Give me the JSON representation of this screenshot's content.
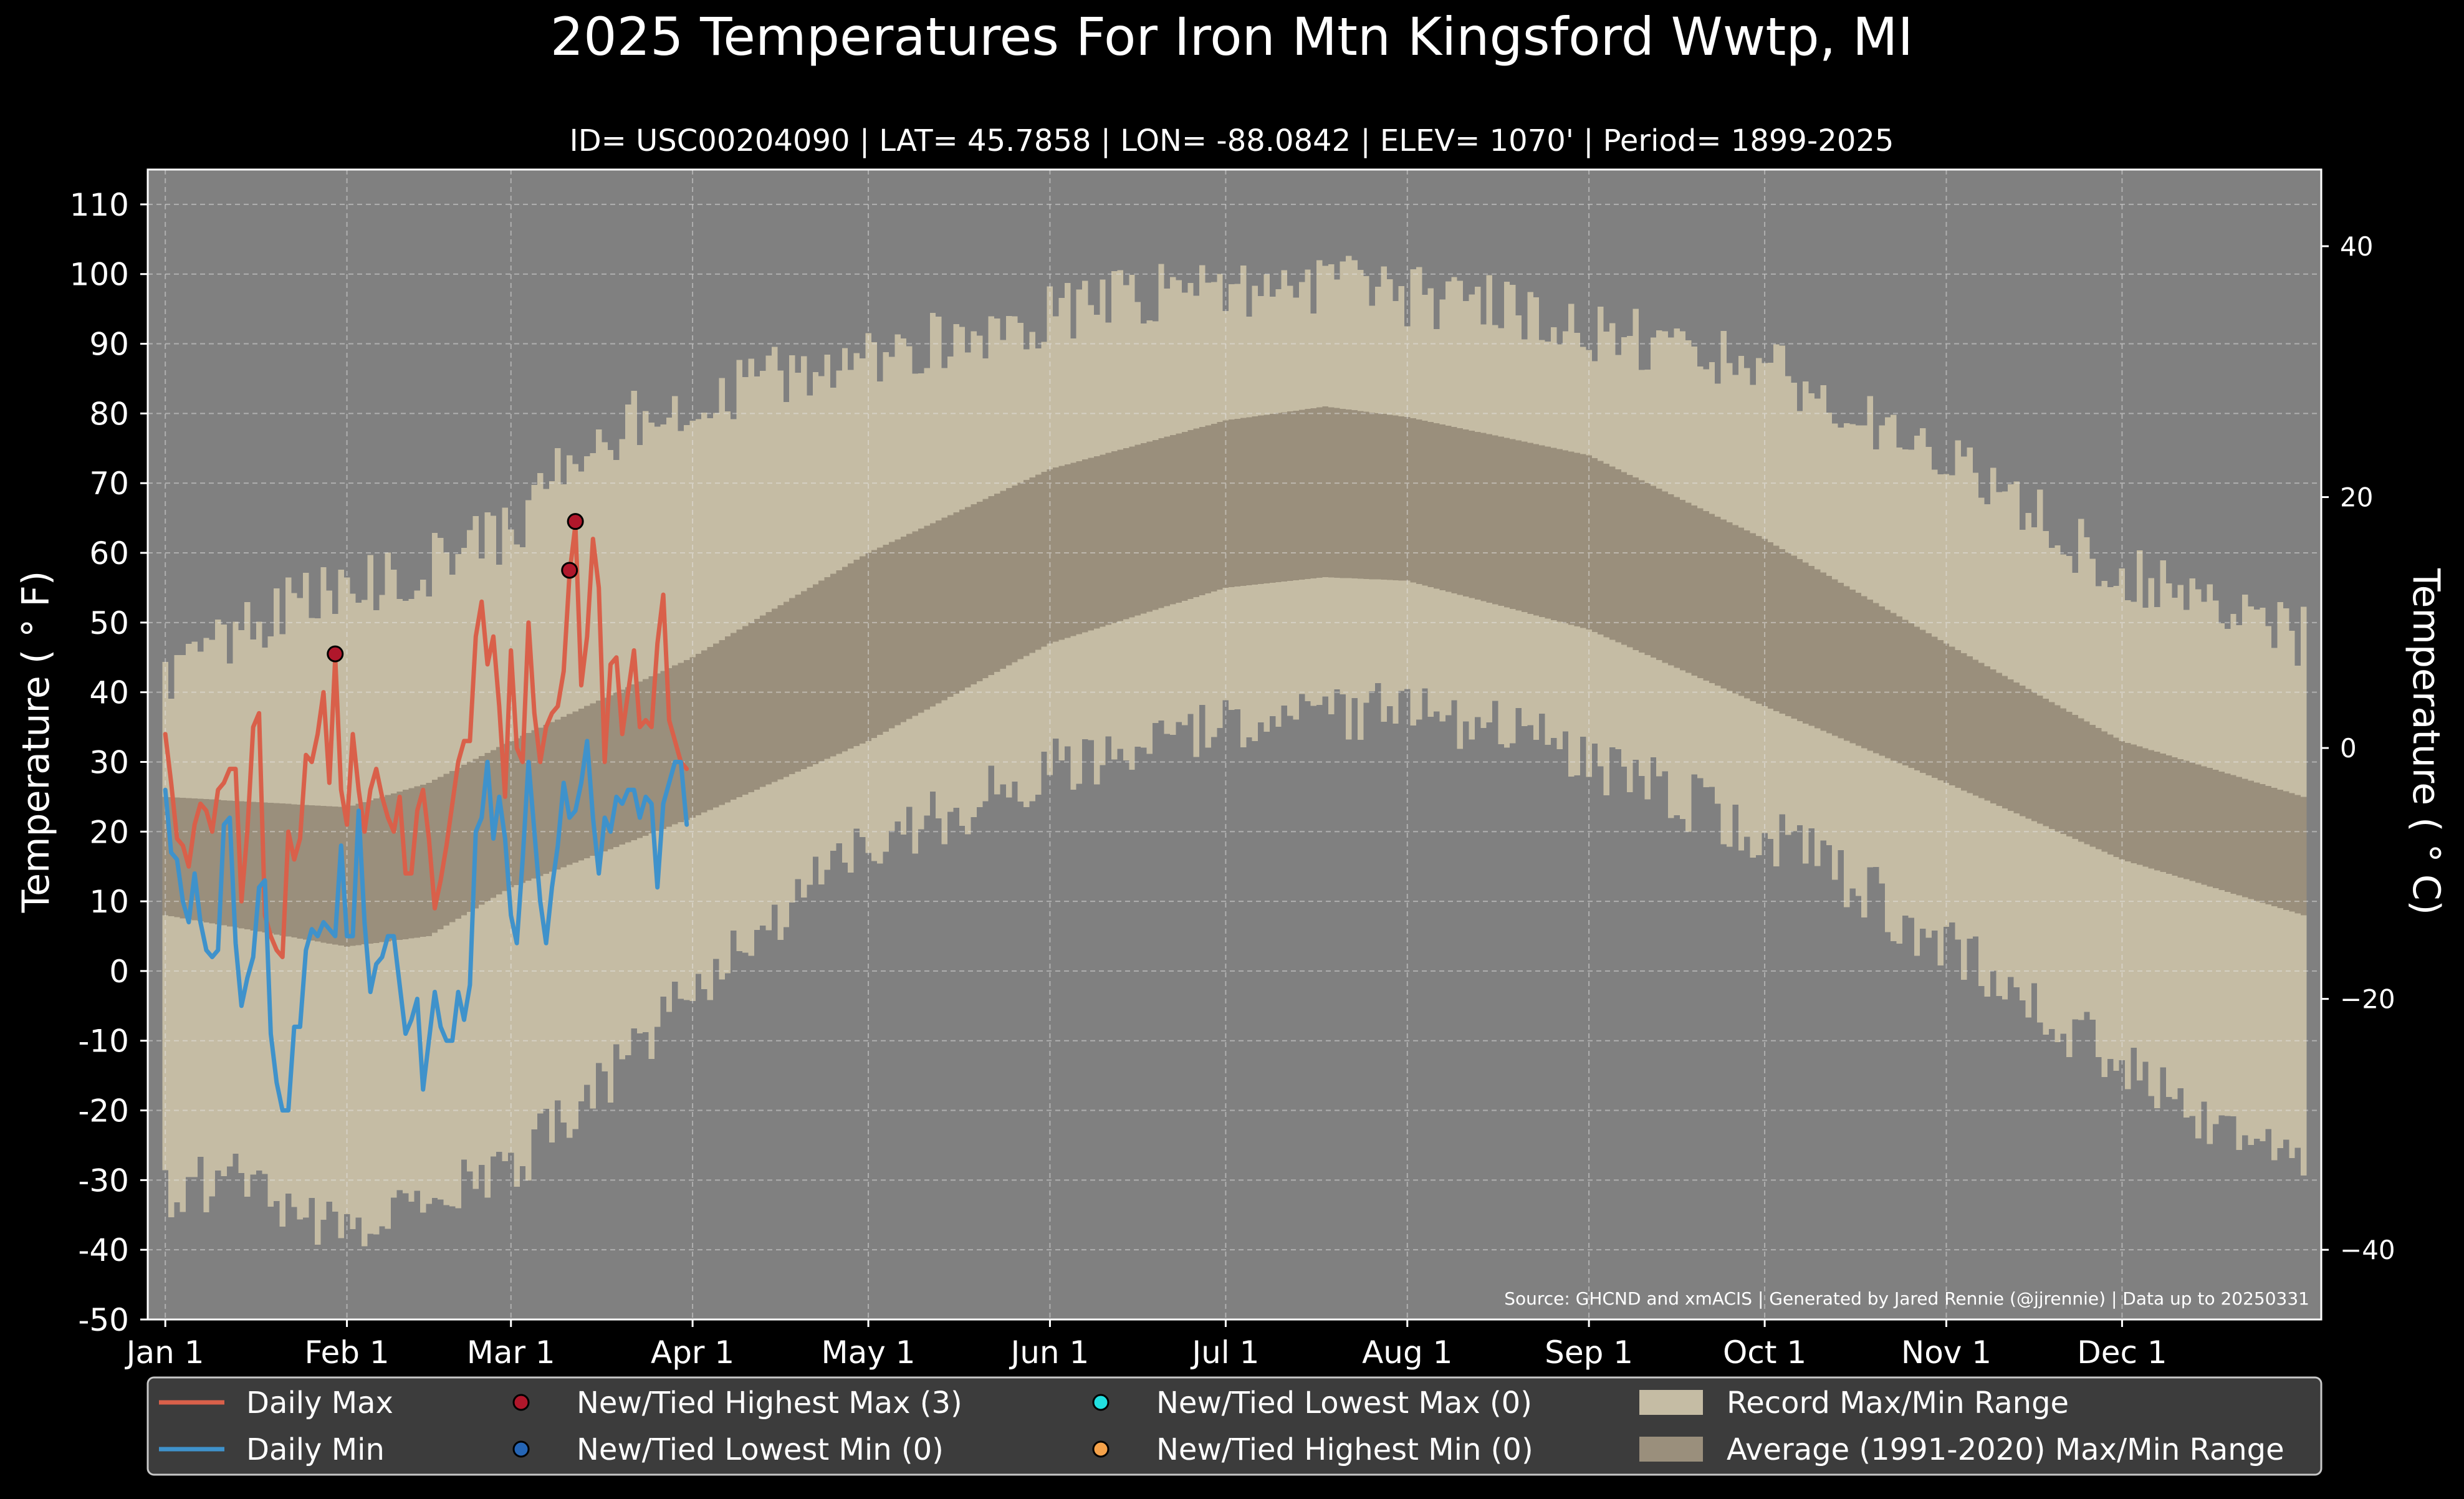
{
  "chart_data": {
    "type": "line",
    "title": "2025 Temperatures For Iron Mtn Kingsford Wwtp, MI",
    "subtitle": "ID= USC00204090 | LAT= 45.7858 | LON= -88.0842 | ELEV= 1070' | Period= 1899-2025",
    "ylabel": "Temperature ($^\\circ$F)",
    "ylabel_display": "Temperature ( ° F)",
    "y2label_display": "Temperature ( ° C)",
    "source": "Source: GHCND and xmACIS | Generated by Jared Rennie (@jjrennie) | Data up to 20250331",
    "ylim": [
      -50,
      115
    ],
    "yticks": [
      -50,
      -40,
      -30,
      -20,
      -10,
      0,
      10,
      20,
      30,
      40,
      50,
      60,
      70,
      80,
      90,
      100,
      110
    ],
    "y2ticks": [
      -40,
      -20,
      0,
      20,
      40
    ],
    "xlim": [
      -3,
      368
    ],
    "xticks": [
      {
        "day": 0,
        "label": "Jan 1"
      },
      {
        "day": 31,
        "label": "Feb 1"
      },
      {
        "day": 59,
        "label": "Mar 1"
      },
      {
        "day": 90,
        "label": "Apr 1"
      },
      {
        "day": 120,
        "label": "May 1"
      },
      {
        "day": 151,
        "label": "Jun 1"
      },
      {
        "day": 181,
        "label": "Jul 1"
      },
      {
        "day": 212,
        "label": "Aug 1"
      },
      {
        "day": 243,
        "label": "Sep 1"
      },
      {
        "day": 273,
        "label": "Oct 1"
      },
      {
        "day": 304,
        "label": "Nov 1"
      },
      {
        "day": 334,
        "label": "Dec 1"
      }
    ],
    "grid": true,
    "legend_placement": "bottom",
    "record_max_anchors": [
      [
        0,
        42
      ],
      [
        10,
        48
      ],
      [
        20,
        52
      ],
      [
        31,
        55
      ],
      [
        45,
        58
      ],
      [
        59,
        63
      ],
      [
        70,
        74
      ],
      [
        80,
        79
      ],
      [
        90,
        80
      ],
      [
        100,
        84
      ],
      [
        110,
        87
      ],
      [
        120,
        88
      ],
      [
        135,
        91
      ],
      [
        151,
        94
      ],
      [
        165,
        97
      ],
      [
        181,
        98
      ],
      [
        200,
        99
      ],
      [
        212,
        97
      ],
      [
        230,
        95
      ],
      [
        243,
        92
      ],
      [
        255,
        90
      ],
      [
        273,
        87
      ],
      [
        290,
        79
      ],
      [
        304,
        74
      ],
      [
        320,
        65
      ],
      [
        334,
        57
      ],
      [
        350,
        52
      ],
      [
        365,
        48
      ]
    ],
    "record_min_anchors": [
      [
        0,
        -32
      ],
      [
        10,
        -30
      ],
      [
        20,
        -33
      ],
      [
        31,
        -37
      ],
      [
        45,
        -32
      ],
      [
        59,
        -28
      ],
      [
        70,
        -20
      ],
      [
        80,
        -12
      ],
      [
        90,
        -3
      ],
      [
        100,
        5
      ],
      [
        110,
        12
      ],
      [
        120,
        18
      ],
      [
        135,
        23
      ],
      [
        151,
        29
      ],
      [
        165,
        33
      ],
      [
        181,
        35
      ],
      [
        200,
        37
      ],
      [
        212,
        38
      ],
      [
        230,
        34
      ],
      [
        243,
        30
      ],
      [
        255,
        26
      ],
      [
        273,
        20
      ],
      [
        290,
        12
      ],
      [
        304,
        3
      ],
      [
        320,
        -5
      ],
      [
        334,
        -13
      ],
      [
        350,
        -22
      ],
      [
        365,
        -25
      ]
    ],
    "avg_max_anchors": [
      [
        0,
        25
      ],
      [
        31,
        23.5
      ],
      [
        45,
        27
      ],
      [
        59,
        33
      ],
      [
        90,
        45
      ],
      [
        120,
        60
      ],
      [
        151,
        72
      ],
      [
        181,
        79
      ],
      [
        198,
        81
      ],
      [
        212,
        79.5
      ],
      [
        243,
        74
      ],
      [
        273,
        62
      ],
      [
        304,
        47
      ],
      [
        334,
        33
      ],
      [
        365,
        25
      ]
    ],
    "avg_min_anchors": [
      [
        0,
        8
      ],
      [
        31,
        3.5
      ],
      [
        45,
        5
      ],
      [
        59,
        12
      ],
      [
        90,
        22
      ],
      [
        120,
        33
      ],
      [
        151,
        47
      ],
      [
        181,
        55
      ],
      [
        198,
        56.5
      ],
      [
        212,
        56
      ],
      [
        243,
        49
      ],
      [
        273,
        38
      ],
      [
        304,
        27
      ],
      [
        334,
        16
      ],
      [
        365,
        8
      ]
    ],
    "series": [
      {
        "name": "Daily Max",
        "color": "#d9604a",
        "start_day": 0,
        "values": [
          34,
          27,
          19,
          18,
          15,
          21,
          24,
          23,
          20,
          26,
          27,
          29,
          29,
          10,
          20,
          35,
          37,
          8,
          5,
          3,
          2,
          20,
          16,
          19,
          31,
          30,
          34,
          40,
          27,
          45,
          26,
          21,
          34,
          26,
          20,
          26,
          29,
          25,
          22,
          20,
          25,
          14,
          14,
          23,
          26,
          19,
          9,
          13,
          18,
          24,
          30,
          33,
          33,
          48,
          53,
          44,
          48,
          38,
          25,
          46,
          32,
          30,
          50,
          37,
          30,
          35,
          37,
          38,
          43,
          57,
          64,
          41,
          48,
          62,
          55,
          30,
          44,
          45,
          34,
          40,
          46,
          35,
          36,
          35,
          47,
          54,
          36,
          33,
          30,
          29
        ]
      },
      {
        "name": "Daily Min",
        "color": "#3f92cb",
        "start_day": 0,
        "values": [
          26,
          17,
          16,
          10,
          7,
          14,
          7,
          3,
          2,
          3,
          21,
          22,
          4,
          -5,
          -1,
          2,
          12,
          13,
          -9,
          -16,
          -20,
          -20,
          -8,
          -8,
          3,
          6,
          5,
          7,
          6,
          5,
          18,
          5,
          5,
          23,
          7,
          -3,
          1,
          2,
          5,
          5,
          -2,
          -9,
          -7,
          -4,
          -17,
          -10,
          -3,
          -8,
          -10,
          -10,
          -3,
          -7,
          -2,
          20,
          22,
          30,
          19,
          25,
          19,
          8,
          4,
          16,
          30,
          20,
          10,
          4,
          12,
          18,
          27,
          22,
          23,
          27,
          33,
          22,
          14,
          22,
          20,
          25,
          24,
          26,
          26,
          22,
          25,
          24,
          12,
          24,
          27,
          30,
          30,
          21
        ]
      }
    ],
    "record_points": [
      {
        "day": 29,
        "value": 45.5
      },
      {
        "day": 69,
        "value": 57.5
      },
      {
        "day": 70,
        "value": 64.5
      }
    ],
    "legend": {
      "daily_max": "Daily Max",
      "daily_min": "Daily Min",
      "new_high_max": "New/Tied Highest Max (3)",
      "new_low_min": "New/Tied Lowest Min (0)",
      "new_low_max": "New/Tied Lowest Max (0)",
      "new_high_min": "New/Tied Highest Min (0)",
      "record_range": "Record Max/Min Range",
      "avg_range": "Average (1991-2020) Max/Min Range"
    },
    "colors": {
      "background": "#000000",
      "plot_background": "#808080",
      "record_band": "#c5bca4",
      "avg_band": "#9a8f7c",
      "daily_max": "#d9604a",
      "daily_min": "#3f92cb",
      "high_max_marker": "#b0172b",
      "low_min_marker": "#2565b5",
      "low_max_marker": "#22e0e0",
      "high_min_marker": "#f5a24a",
      "legend_bg": "#3c3c3c"
    }
  }
}
